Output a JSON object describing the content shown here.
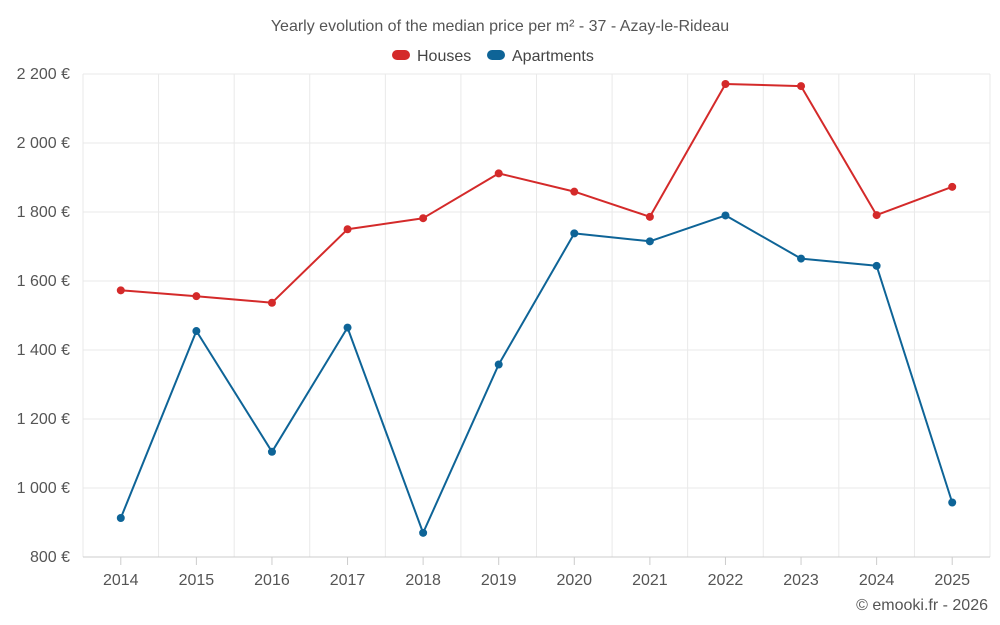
{
  "chart_data": {
    "type": "line",
    "title": "Yearly evolution of the median price per m² - 37 - Azay-le-Rideau",
    "categories": [
      "2014",
      "2015",
      "2016",
      "2017",
      "2018",
      "2019",
      "2020",
      "2021",
      "2022",
      "2023",
      "2024",
      "2025"
    ],
    "series": [
      {
        "name": "Houses",
        "color": "#d42a2a",
        "values": [
          1573,
          1556,
          1537,
          1750,
          1782,
          1912,
          1859,
          1786,
          2171,
          2165,
          1791,
          1873
        ]
      },
      {
        "name": "Apartments",
        "color": "#0e6497",
        "values": [
          913,
          1455,
          1105,
          1465,
          870,
          1358,
          1738,
          1715,
          1790,
          1665,
          1644,
          958
        ]
      }
    ],
    "ylim": [
      800,
      2200
    ],
    "yticks": [
      800,
      1000,
      1200,
      1400,
      1600,
      1800,
      2000,
      2200
    ],
    "ytick_labels": [
      "800 €",
      "1 000 €",
      "1 200 €",
      "1 400 €",
      "1 600 €",
      "1 800 €",
      "2 000 €",
      "2 200 €"
    ],
    "xlabel": "",
    "ylabel": "",
    "grid": true,
    "legend_position": "top-center"
  },
  "credit": "© emooki.fr - 2026"
}
